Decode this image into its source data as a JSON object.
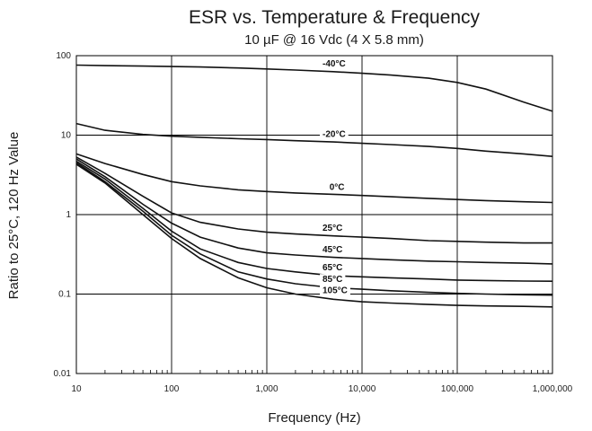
{
  "chart_data": {
    "type": "line",
    "title": "ESR vs. Temperature & Frequency",
    "subtitle": "10 µF @ 16 Vdc (4 X 5.8 mm)",
    "xlabel": "Frequency (Hz)",
    "ylabel": "Ratio to 25°C, 120 Hz Value",
    "x_scale": "log",
    "y_scale": "log",
    "xlim": [
      10,
      1000000
    ],
    "ylim": [
      0.01,
      100
    ],
    "grid": true,
    "x_ticks": [
      "10",
      "100",
      "1,000",
      "10,000",
      "100,000",
      "1,000,000"
    ],
    "y_ticks": [
      "0.01",
      "0.1",
      "1",
      "10",
      "100"
    ],
    "x": [
      10,
      20,
      50,
      100,
      200,
      500,
      1000,
      2000,
      5000,
      10000,
      20000,
      50000,
      100000,
      200000,
      500000,
      1000000
    ],
    "series": [
      {
        "name": "-40°C",
        "values": [
          76,
          75,
          74,
          73,
          72,
          70,
          68,
          66,
          63,
          60,
          57,
          52,
          46,
          38,
          26,
          20
        ]
      },
      {
        "name": "-20°C",
        "values": [
          14,
          11.5,
          10.2,
          9.7,
          9.4,
          9.0,
          8.8,
          8.5,
          8.2,
          7.9,
          7.6,
          7.2,
          6.8,
          6.3,
          5.8,
          5.4
        ]
      },
      {
        "name": "0°C",
        "values": [
          5.8,
          4.4,
          3.2,
          2.6,
          2.3,
          2.05,
          1.95,
          1.87,
          1.8,
          1.74,
          1.68,
          1.6,
          1.55,
          1.5,
          1.45,
          1.42
        ]
      },
      {
        "name": "25°C",
        "values": [
          5.3,
          3.3,
          1.7,
          1.05,
          0.8,
          0.66,
          0.6,
          0.57,
          0.54,
          0.52,
          0.5,
          0.47,
          0.46,
          0.45,
          0.44,
          0.44
        ]
      },
      {
        "name": "45°C",
        "values": [
          5.0,
          3.0,
          1.35,
          0.78,
          0.52,
          0.38,
          0.33,
          0.31,
          0.29,
          0.28,
          0.27,
          0.26,
          0.255,
          0.25,
          0.245,
          0.24
        ]
      },
      {
        "name": "65°C",
        "values": [
          4.7,
          2.8,
          1.2,
          0.62,
          0.37,
          0.25,
          0.21,
          0.19,
          0.17,
          0.165,
          0.16,
          0.155,
          0.15,
          0.148,
          0.146,
          0.145
        ]
      },
      {
        "name": "85°C",
        "values": [
          4.5,
          2.6,
          1.1,
          0.55,
          0.32,
          0.19,
          0.155,
          0.135,
          0.12,
          0.115,
          0.11,
          0.105,
          0.102,
          0.1,
          0.098,
          0.097
        ]
      },
      {
        "name": "105°C",
        "values": [
          4.3,
          2.5,
          1.0,
          0.5,
          0.28,
          0.16,
          0.12,
          0.1,
          0.086,
          0.08,
          0.077,
          0.074,
          0.072,
          0.071,
          0.07,
          0.069
        ]
      }
    ]
  }
}
